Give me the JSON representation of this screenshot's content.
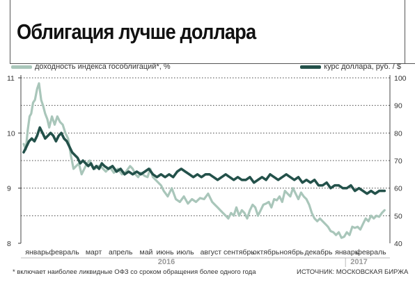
{
  "chart_data": {
    "type": "line",
    "title": "Облигация лучше доллара",
    "legend": {
      "yield_label": "доходность индекса гособлигаций*, %",
      "usd_label": "курс доллара, руб. / $"
    },
    "colors": {
      "yield": "#a9c6ba",
      "usd": "#23514a",
      "grid": "#444444"
    },
    "grid": true,
    "legend_placement": "top",
    "y_left": {
      "range": [
        8,
        11
      ],
      "ticks": [
        "8",
        "9",
        "10",
        "11"
      ]
    },
    "y_right": {
      "range": [
        40,
        100
      ],
      "ticks": [
        "40",
        "50",
        "60",
        "70",
        "80",
        "90",
        "100"
      ]
    },
    "months": [
      "январь",
      "февраль",
      "март",
      "апрель",
      "май",
      "июнь",
      "июль",
      "август",
      "сентябрь",
      "октябрь",
      "ноябрь",
      "декабрь",
      "январь",
      "февраль"
    ],
    "years": [
      "2016",
      "2017"
    ],
    "series": [
      {
        "name": "доходность индекса гособлигаций*, %",
        "axis": "left",
        "x": [
          0,
          0.08,
          0.15,
          0.22,
          0.28,
          0.35,
          0.42,
          0.5,
          0.57,
          0.65,
          0.72,
          0.8,
          0.88,
          0.95,
          1.05,
          1.15,
          1.25,
          1.35,
          1.45,
          1.55,
          1.65,
          1.75,
          1.85,
          1.95,
          2.05,
          2.15,
          2.25,
          2.35,
          2.45,
          2.55,
          2.65,
          2.75,
          2.85,
          2.95,
          3.05,
          3.2,
          3.35,
          3.5,
          3.65,
          3.8,
          3.95,
          4.05,
          4.15,
          4.25,
          4.35,
          4.5,
          4.6,
          4.7,
          4.8,
          4.9,
          5.0,
          5.1,
          5.2,
          5.35,
          5.5,
          5.65,
          5.8,
          5.95,
          6.1,
          6.25,
          6.4,
          6.55,
          6.7,
          6.85,
          7.0,
          7.1,
          7.2,
          7.3,
          7.4,
          7.5,
          7.6,
          7.7,
          7.8,
          7.9,
          8.0,
          8.1,
          8.2,
          8.3,
          8.4,
          8.5,
          8.6,
          8.7,
          8.8,
          8.9,
          9.0,
          9.1,
          9.2,
          9.3,
          9.4,
          9.5,
          9.6,
          9.7,
          9.8,
          9.9,
          10.0,
          10.1,
          10.2,
          10.3,
          10.4,
          10.5,
          10.6,
          10.7,
          10.8,
          10.9,
          11.0,
          11.1,
          11.2,
          11.3,
          11.4,
          11.5,
          11.6,
          11.7,
          11.8,
          11.9,
          12.0,
          12.1,
          12.2,
          12.3,
          12.4,
          12.5,
          12.6,
          12.7,
          12.8,
          12.9,
          13.0,
          13.1,
          13.2,
          13.3,
          13.4
        ],
        "values": [
          9.8,
          9.7,
          10.05,
          10.3,
          10.35,
          10.55,
          10.6,
          10.8,
          10.9,
          10.6,
          10.5,
          10.35,
          10.25,
          10.1,
          10.3,
          10.15,
          10.3,
          10.2,
          10.15,
          10.0,
          9.9,
          9.6,
          9.35,
          9.4,
          9.45,
          9.25,
          9.35,
          9.45,
          9.5,
          9.38,
          9.35,
          9.4,
          9.4,
          9.35,
          9.3,
          9.38,
          9.28,
          9.35,
          9.25,
          9.3,
          9.4,
          9.35,
          9.25,
          9.2,
          9.28,
          9.22,
          9.2,
          9.35,
          9.2,
          9.15,
          9.1,
          9.05,
          8.95,
          8.85,
          9.0,
          8.8,
          8.75,
          8.85,
          8.72,
          8.8,
          8.75,
          8.82,
          8.8,
          8.9,
          8.75,
          8.7,
          8.65,
          8.6,
          8.55,
          8.5,
          8.45,
          8.55,
          8.5,
          8.65,
          8.5,
          8.6,
          8.55,
          8.45,
          8.6,
          8.7,
          8.65,
          8.5,
          8.6,
          8.7,
          8.72,
          8.75,
          8.65,
          8.8,
          8.78,
          8.85,
          8.75,
          8.95,
          8.9,
          8.85,
          9.0,
          8.9,
          8.8,
          8.92,
          8.85,
          8.8,
          8.7,
          8.55,
          8.45,
          8.4,
          8.45,
          8.4,
          8.35,
          8.3,
          8.22,
          8.2,
          8.15,
          8.2,
          8.1,
          8.12,
          8.2,
          8.15,
          8.3,
          8.28,
          8.3,
          8.25,
          8.35,
          8.45,
          8.4,
          8.5,
          8.45,
          8.5,
          8.48,
          8.55,
          8.6
        ],
        "color": "#a9c6ba"
      },
      {
        "name": "курс доллара, руб. / $",
        "axis": "right",
        "x": [
          0,
          0.1,
          0.2,
          0.3,
          0.4,
          0.5,
          0.6,
          0.7,
          0.8,
          0.9,
          1.0,
          1.1,
          1.2,
          1.3,
          1.4,
          1.5,
          1.6,
          1.7,
          1.8,
          1.9,
          2.0,
          2.1,
          2.2,
          2.3,
          2.4,
          2.5,
          2.6,
          2.7,
          2.8,
          2.9,
          3.0,
          3.15,
          3.3,
          3.45,
          3.6,
          3.75,
          3.9,
          4.05,
          4.2,
          4.35,
          4.5,
          4.65,
          4.8,
          4.95,
          5.1,
          5.25,
          5.4,
          5.55,
          5.7,
          5.85,
          6.0,
          6.15,
          6.3,
          6.45,
          6.6,
          6.75,
          6.9,
          7.05,
          7.2,
          7.35,
          7.5,
          7.65,
          7.8,
          7.95,
          8.1,
          8.25,
          8.4,
          8.55,
          8.7,
          8.85,
          9.0,
          9.15,
          9.3,
          9.45,
          9.6,
          9.75,
          9.9,
          10.05,
          10.2,
          10.35,
          10.5,
          10.65,
          10.8,
          10.95,
          11.1,
          11.25,
          11.4,
          11.55,
          11.7,
          11.85,
          12.0,
          12.15,
          12.3,
          12.45,
          12.6,
          12.75,
          12.9,
          13.05,
          13.2,
          13.4
        ],
        "values": [
          73,
          75,
          77,
          78,
          77,
          79,
          82,
          80,
          78,
          79,
          80,
          79,
          77,
          79,
          80,
          78,
          77,
          75,
          73,
          72,
          71,
          69,
          70,
          69,
          68,
          69,
          67,
          68,
          67,
          69,
          68,
          67,
          68,
          66,
          67,
          65,
          66,
          65,
          66,
          65,
          66,
          67,
          65,
          64,
          65,
          64,
          65,
          64,
          66,
          67,
          66,
          65,
          64,
          65,
          64,
          65,
          65,
          64,
          63,
          64,
          65,
          64,
          63,
          64,
          63,
          63,
          64,
          62,
          63,
          64,
          63,
          65,
          64,
          63,
          64,
          65,
          64,
          63,
          64,
          62,
          63,
          62,
          63,
          61,
          61,
          62,
          60,
          61,
          61,
          60,
          60,
          61,
          59,
          60,
          59,
          58,
          59,
          58,
          59,
          59
        ],
        "color": "#23514a"
      }
    ]
  },
  "footnote": "* включает наиболее ликвидные ОФЗ со сроком обращения более одного года",
  "source": "ИСТОЧНИК: МОСКОВСКАЯ БИРЖА"
}
